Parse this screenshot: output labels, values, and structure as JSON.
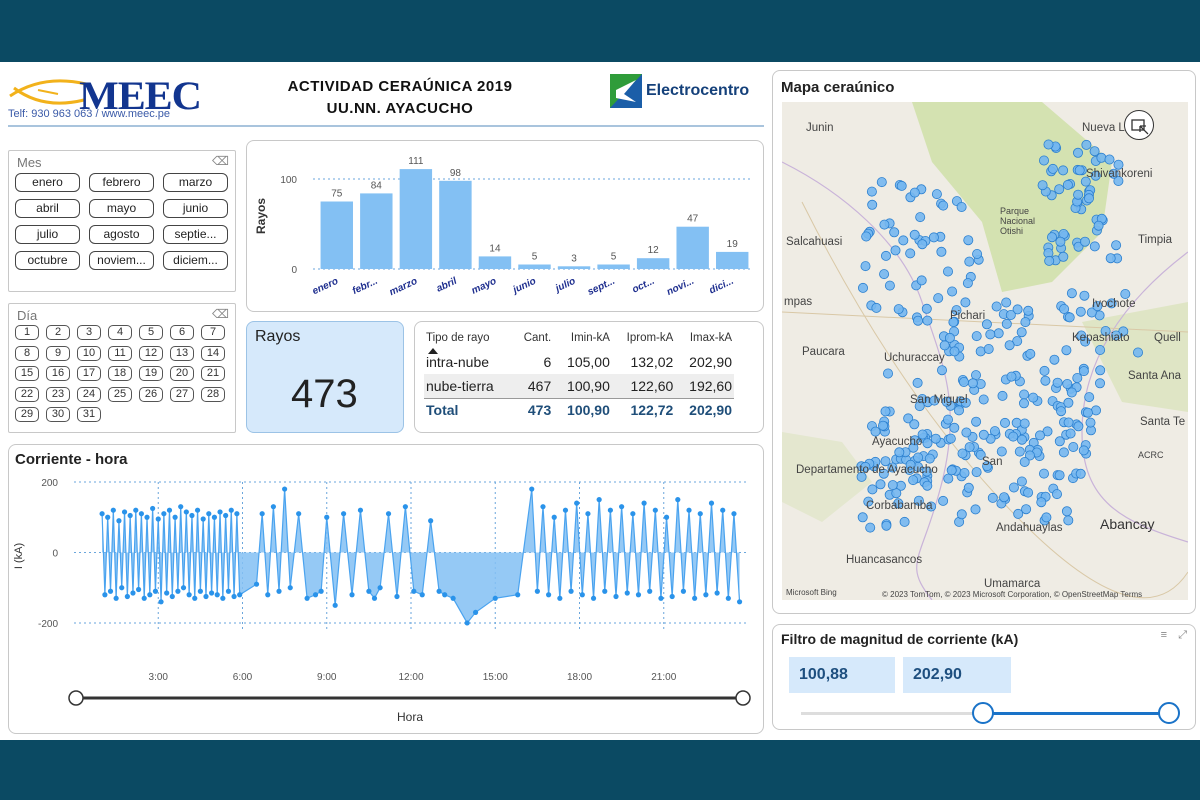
{
  "header": {
    "meec_logo_text": "MEEC",
    "meec_contact": "Telf: 930 963 063 / www.meec.pe",
    "title_line1": "ACTIVIDAD CERAÚNICA 2019",
    "title_line2": "UU.NN. AYACUCHO",
    "electro_text": "Electrocentro"
  },
  "mes_slicer": {
    "title": "Mes",
    "options": [
      "enero",
      "febrero",
      "marzo",
      "abril",
      "mayo",
      "junio",
      "julio",
      "agosto",
      "septie...",
      "octubre",
      "noviem...",
      "diciem..."
    ]
  },
  "dia_slicer": {
    "title": "Día",
    "options": [
      "1",
      "2",
      "3",
      "4",
      "5",
      "6",
      "7",
      "8",
      "9",
      "10",
      "11",
      "12",
      "13",
      "14",
      "15",
      "16",
      "17",
      "18",
      "19",
      "20",
      "21",
      "22",
      "23",
      "24",
      "25",
      "26",
      "27",
      "28",
      "29",
      "30",
      "31"
    ]
  },
  "kpi": {
    "label": "Rayos",
    "value": "473"
  },
  "table": {
    "headers": [
      "Tipo de rayo",
      "Cant.",
      "Imin-kA",
      "Iprom-kA",
      "Imax-kA"
    ],
    "rows": [
      [
        "intra-nube",
        "6",
        "105,00",
        "132,02",
        "202,90"
      ],
      [
        "nube-tierra",
        "467",
        "100,90",
        "122,60",
        "192,60"
      ]
    ],
    "total": [
      "Total",
      "473",
      "100,90",
      "122,72",
      "202,90"
    ]
  },
  "line_chart": {
    "title": "Corriente - hora",
    "ylabel": "I (kA)",
    "xlabel": "Hora",
    "yticks": [
      "200",
      "0",
      "-200"
    ],
    "xticks": [
      "3:00",
      "6:00",
      "9:00",
      "12:00",
      "15:00",
      "18:00",
      "21:00"
    ]
  },
  "map": {
    "title": "Mapa ceraúnico",
    "labels": [
      "Junin",
      "Nueva L",
      "Shivankoreni",
      "Parque Nacional Otishi",
      "Salcahuasi",
      "Timpia",
      "Pichari",
      "Ivochote",
      "Kepashiato",
      "Quell",
      "Paucara",
      "Uchuraccay",
      "Santa Ana",
      "San Miguel",
      "Ayacucho",
      "Santa Te",
      "San",
      "ACRC",
      "Departamento de Ayacucho",
      "Andahuaylas",
      "Abancay",
      "Huancasancos",
      "Umamarca",
      "mpas",
      "Corbabamba"
    ],
    "attribution": "© 2023 TomTom, © 2023 Microsoft Corporation, © OpenStreetMap  Terms",
    "bing": "Microsoft Bing"
  },
  "filter": {
    "title": "Filtro de magnitud de corriente (kA)",
    "min_value": "100,88",
    "max_value": "202,90"
  },
  "colors": {
    "bar": "#83c0f3",
    "accent": "#1a73c8",
    "frame": "#0b4a63",
    "label_blue": "#1f2f8f"
  },
  "chart_data": [
    {
      "type": "bar",
      "title": "",
      "xlabel": "",
      "ylabel": "Rayos",
      "categories": [
        "enero",
        "febr...",
        "marzo",
        "abril",
        "mayo",
        "junio",
        "julio",
        "sept...",
        "oct...",
        "novi...",
        "dici..."
      ],
      "values": [
        75,
        84,
        111,
        98,
        14,
        5,
        3,
        5,
        12,
        47,
        19
      ],
      "yticks": [
        0,
        100
      ],
      "ylim": [
        0,
        120
      ]
    },
    {
      "type": "line",
      "title": "Corriente - hora",
      "xlabel": "Hora",
      "ylabel": "I (kA)",
      "xlim": [
        0,
        24
      ],
      "ylim": [
        -220,
        200
      ],
      "x": [
        1.0,
        1.1,
        1.2,
        1.3,
        1.4,
        1.5,
        1.6,
        1.7,
        1.8,
        1.9,
        2.0,
        2.1,
        2.2,
        2.3,
        2.4,
        2.5,
        2.6,
        2.7,
        2.8,
        2.9,
        3.0,
        3.1,
        3.2,
        3.3,
        3.4,
        3.5,
        3.6,
        3.7,
        3.8,
        3.9,
        4.0,
        4.1,
        4.2,
        4.3,
        4.4,
        4.5,
        4.6,
        4.7,
        4.8,
        4.9,
        5.0,
        5.1,
        5.2,
        5.3,
        5.4,
        5.5,
        5.6,
        5.7,
        5.8,
        5.9,
        6.5,
        6.7,
        6.9,
        7.1,
        7.3,
        7.5,
        7.7,
        8.0,
        8.3,
        8.6,
        8.8,
        9.0,
        9.3,
        9.6,
        9.9,
        10.2,
        10.5,
        10.7,
        10.9,
        11.2,
        11.5,
        11.8,
        12.1,
        12.4,
        12.7,
        13.0,
        13.2,
        13.5,
        14.0,
        14.3,
        15.0,
        15.8,
        16.3,
        16.5,
        16.7,
        16.9,
        17.1,
        17.3,
        17.5,
        17.7,
        17.9,
        18.1,
        18.3,
        18.5,
        18.7,
        18.9,
        19.1,
        19.3,
        19.5,
        19.7,
        19.9,
        20.1,
        20.3,
        20.5,
        20.7,
        20.9,
        21.1,
        21.3,
        21.5,
        21.7,
        21.9,
        22.1,
        22.3,
        22.5,
        22.7,
        22.9,
        23.1,
        23.3,
        23.5,
        23.7
      ],
      "y": [
        110,
        -120,
        100,
        -110,
        120,
        -130,
        90,
        -100,
        115,
        -125,
        105,
        -115,
        120,
        -105,
        110,
        -130,
        100,
        -120,
        125,
        -110,
        95,
        -140,
        110,
        -115,
        120,
        -125,
        100,
        -110,
        130,
        -100,
        115,
        -120,
        105,
        -130,
        120,
        -110,
        95,
        -125,
        110,
        -115,
        100,
        -120,
        115,
        -130,
        105,
        -110,
        120,
        -125,
        110,
        -120,
        -90,
        110,
        -120,
        130,
        -110,
        180,
        -100,
        110,
        -130,
        -120,
        -110,
        100,
        -150,
        110,
        -120,
        120,
        -110,
        -130,
        -100,
        110,
        -125,
        130,
        -110,
        -120,
        90,
        -110,
        -120,
        -130,
        -200,
        -170,
        -130,
        -120,
        180,
        -110,
        130,
        -120,
        100,
        -130,
        120,
        -110,
        140,
        -120,
        110,
        -130,
        150,
        -110,
        120,
        -125,
        130,
        -115,
        110,
        -120,
        140,
        -110,
        120,
        -130,
        100,
        -125,
        150,
        -110,
        120,
        -130,
        110,
        -120,
        140,
        -115,
        120,
        -130,
        110,
        -140
      ]
    }
  ]
}
